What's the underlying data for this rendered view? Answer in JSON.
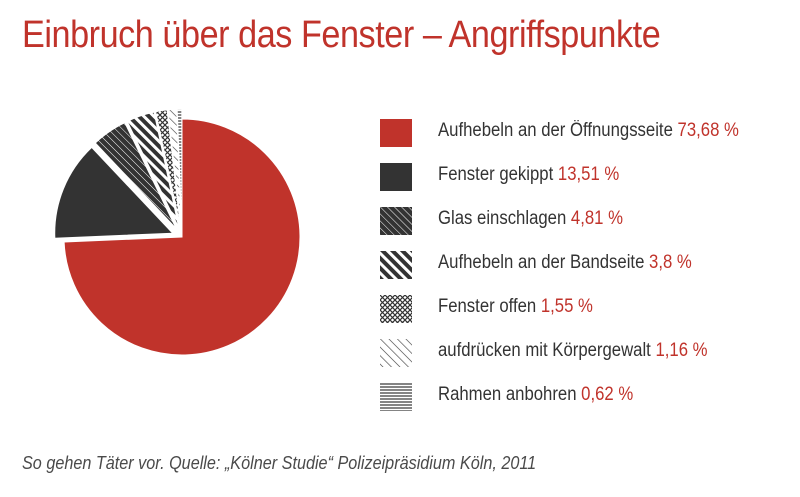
{
  "title": "Einbruch über das Fenster – Angriffspunkte",
  "source": "So gehen Täter vor. Quelle: „Kölner Studie“ Polizeipräsidium Köln, 2011",
  "colors": {
    "accent": "#c0332b",
    "dark": "#333333"
  },
  "chart_data": {
    "type": "pie",
    "title": "Einbruch über das Fenster – Angriffspunkte",
    "legend_position": "right",
    "slices": [
      {
        "label": "Aufhebeln an der Öffnungsseite",
        "value": 73.68,
        "value_label": "73,68 %",
        "pattern": "solid-red"
      },
      {
        "label": "Fenster gekippt",
        "value": 13.51,
        "value_label": "13,51 %",
        "pattern": "solid-dark"
      },
      {
        "label": "Glas einschlagen",
        "value": 4.81,
        "value_label": "4,81 %",
        "pattern": "dense-hatch"
      },
      {
        "label": "Aufhebeln an der Bandseite",
        "value": 3.8,
        "value_label": "3,8 %",
        "pattern": "bold-diagonal"
      },
      {
        "label": "Fenster offen",
        "value": 1.55,
        "value_label": "1,55 %",
        "pattern": "crosshatch"
      },
      {
        "label": "aufdrücken mit Körpergewalt",
        "value": 1.16,
        "value_label": "1,16 %",
        "pattern": "thin-diagonal"
      },
      {
        "label": "Rahmen anbohren",
        "value": 0.62,
        "value_label": "0,62 %",
        "pattern": "horizontal-lines"
      }
    ]
  }
}
